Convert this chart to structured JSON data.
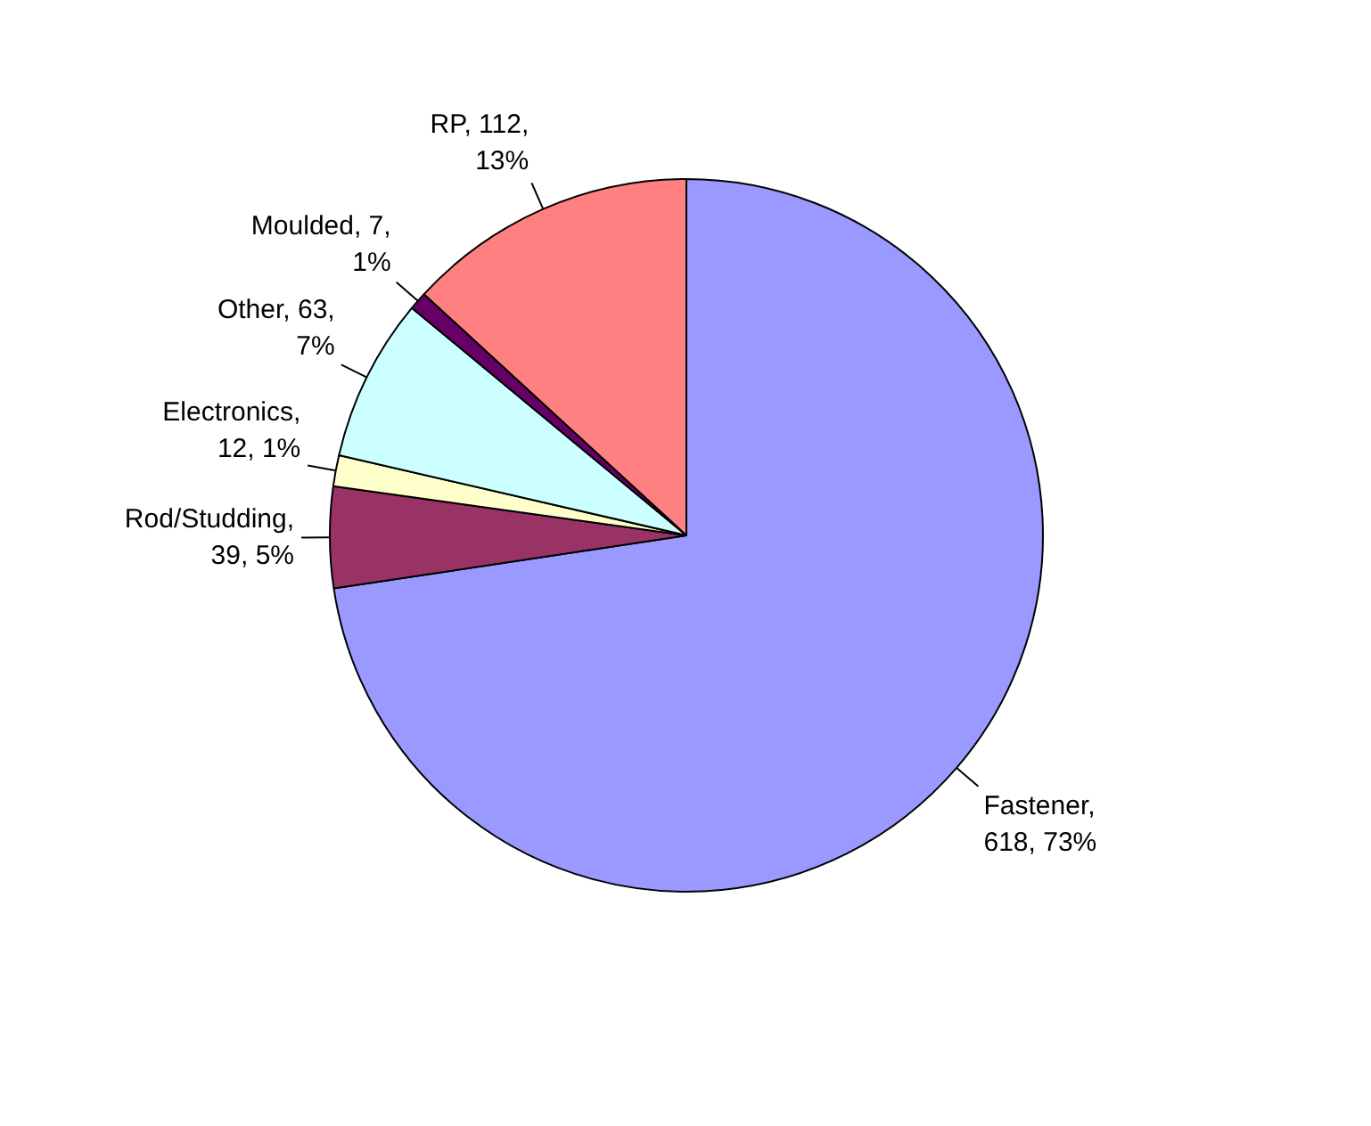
{
  "chart_data": {
    "type": "pie",
    "categories": [
      "Fastener",
      "Rod/Studding",
      "Electronics",
      "Other",
      "Moulded",
      "RP"
    ],
    "values": [
      618,
      39,
      12,
      63,
      7,
      112
    ],
    "colors": [
      "#9999ff",
      "#993366",
      "#ffffcc",
      "#ccffff",
      "#660066",
      "#ff8080"
    ],
    "value_labels": [
      ", 618, 73%",
      ", 39, 5%",
      ", 12, 1%",
      ", 63, 7%",
      ", 7, 1%",
      ", 112, 13%"
    ]
  }
}
